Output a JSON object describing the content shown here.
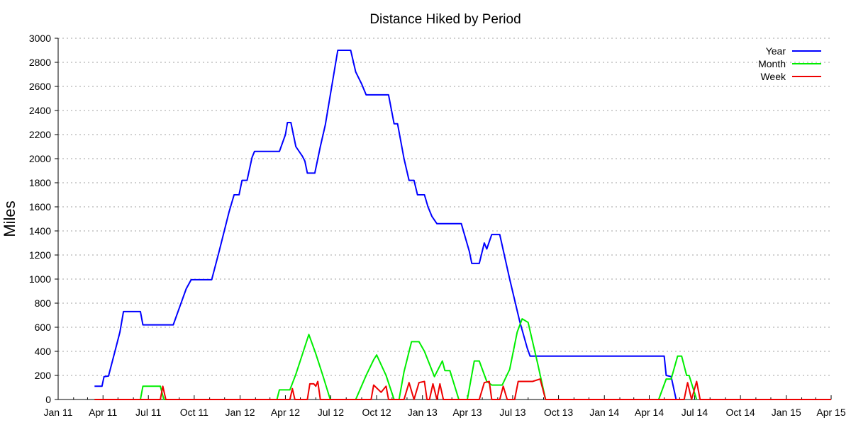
{
  "chart_data": {
    "type": "line",
    "title": "Distance Hiked by Period",
    "xlabel": "",
    "ylabel": "Miles",
    "xlim": [
      "2011-01-01",
      "2015-04-01"
    ],
    "ylim": [
      0,
      3000
    ],
    "grid": true,
    "legend_position": "top-right",
    "x_ticks": [
      "Jan 11",
      "Apr 11",
      "Jul 11",
      "Oct 11",
      "Jan 12",
      "Apr 12",
      "Jul 12",
      "Oct 12",
      "Jan 13",
      "Apr 13",
      "Jul 13",
      "Oct 13",
      "Jan 14",
      "Apr 14",
      "Jul 14",
      "Oct 14",
      "Jan 15",
      "Apr 15"
    ],
    "y_ticks": [
      0,
      200,
      400,
      600,
      800,
      1000,
      1200,
      1400,
      1600,
      1800,
      2000,
      2200,
      2400,
      2600,
      2800,
      3000
    ],
    "series": [
      {
        "name": "Year",
        "color": "#0000ff",
        "points": [
          [
            "2011-03-15",
            110
          ],
          [
            "2011-03-30",
            110
          ],
          [
            "2011-04-03",
            190
          ],
          [
            "2011-04-12",
            195
          ],
          [
            "2011-04-25",
            400
          ],
          [
            "2011-05-05",
            560
          ],
          [
            "2011-05-12",
            730
          ],
          [
            "2011-06-15",
            730
          ],
          [
            "2011-06-20",
            620
          ],
          [
            "2011-08-20",
            620
          ],
          [
            "2011-09-15",
            920
          ],
          [
            "2011-09-25",
            995
          ],
          [
            "2011-11-05",
            995
          ],
          [
            "2011-11-20",
            1230
          ],
          [
            "2011-12-10",
            1560
          ],
          [
            "2011-12-20",
            1700
          ],
          [
            "2011-12-30",
            1700
          ],
          [
            "2012-01-05",
            1820
          ],
          [
            "2012-01-15",
            1820
          ],
          [
            "2012-01-25",
            2010
          ],
          [
            "2012-01-30",
            2060
          ],
          [
            "2012-03-20",
            2060
          ],
          [
            "2012-04-01",
            2200
          ],
          [
            "2012-04-05",
            2300
          ],
          [
            "2012-04-12",
            2300
          ],
          [
            "2012-04-22",
            2100
          ],
          [
            "2012-05-05",
            2020
          ],
          [
            "2012-05-10",
            1980
          ],
          [
            "2012-05-15",
            1880
          ],
          [
            "2012-05-30",
            1880
          ],
          [
            "2012-06-10",
            2100
          ],
          [
            "2012-06-20",
            2280
          ],
          [
            "2012-07-05",
            2650
          ],
          [
            "2012-07-15",
            2900
          ],
          [
            "2012-08-10",
            2900
          ],
          [
            "2012-08-20",
            2720
          ],
          [
            "2012-09-01",
            2620
          ],
          [
            "2012-09-10",
            2530
          ],
          [
            "2012-10-25",
            2530
          ],
          [
            "2012-11-05",
            2290
          ],
          [
            "2012-11-12",
            2290
          ],
          [
            "2012-11-25",
            2000
          ],
          [
            "2012-12-05",
            1820
          ],
          [
            "2012-12-15",
            1820
          ],
          [
            "2012-12-22",
            1700
          ],
          [
            "2013-01-05",
            1700
          ],
          [
            "2013-01-12",
            1600
          ],
          [
            "2013-01-20",
            1520
          ],
          [
            "2013-01-30",
            1460
          ],
          [
            "2013-03-20",
            1460
          ],
          [
            "2013-04-05",
            1230
          ],
          [
            "2013-04-10",
            1130
          ],
          [
            "2013-04-25",
            1130
          ],
          [
            "2013-05-05",
            1300
          ],
          [
            "2013-05-10",
            1250
          ],
          [
            "2013-05-20",
            1370
          ],
          [
            "2013-06-05",
            1370
          ],
          [
            "2013-06-25",
            1000
          ],
          [
            "2013-07-15",
            650
          ],
          [
            "2013-07-30",
            430
          ],
          [
            "2013-08-05",
            360
          ],
          [
            "2014-05-01",
            360
          ],
          [
            "2014-05-05",
            200
          ],
          [
            "2014-05-15",
            190
          ],
          [
            "2014-05-25",
            0
          ]
        ]
      },
      {
        "name": "Month",
        "color": "#00ee00",
        "points": [
          [
            "2011-03-15",
            0
          ],
          [
            "2011-06-15",
            0
          ],
          [
            "2011-06-20",
            110
          ],
          [
            "2011-07-25",
            110
          ],
          [
            "2011-08-01",
            0
          ],
          [
            "2012-03-15",
            0
          ],
          [
            "2012-03-20",
            80
          ],
          [
            "2012-04-10",
            80
          ],
          [
            "2012-04-22",
            210
          ],
          [
            "2012-05-03",
            350
          ],
          [
            "2012-05-18",
            540
          ],
          [
            "2012-06-01",
            380
          ],
          [
            "2012-06-15",
            200
          ],
          [
            "2012-06-30",
            0
          ],
          [
            "2012-08-20",
            0
          ],
          [
            "2012-09-10",
            200
          ],
          [
            "2012-09-25",
            330
          ],
          [
            "2012-10-01",
            370
          ],
          [
            "2012-10-20",
            200
          ],
          [
            "2012-11-05",
            0
          ],
          [
            "2012-11-15",
            0
          ],
          [
            "2012-11-25",
            230
          ],
          [
            "2012-12-10",
            480
          ],
          [
            "2012-12-25",
            480
          ],
          [
            "2013-01-05",
            400
          ],
          [
            "2013-01-25",
            190
          ],
          [
            "2013-02-10",
            320
          ],
          [
            "2013-02-15",
            240
          ],
          [
            "2013-02-25",
            240
          ],
          [
            "2013-03-15",
            0
          ],
          [
            "2013-04-01",
            0
          ],
          [
            "2013-04-15",
            320
          ],
          [
            "2013-04-25",
            320
          ],
          [
            "2013-05-10",
            150
          ],
          [
            "2013-05-20",
            120
          ],
          [
            "2013-06-10",
            120
          ],
          [
            "2013-06-25",
            250
          ],
          [
            "2013-07-10",
            560
          ],
          [
            "2013-07-20",
            670
          ],
          [
            "2013-08-01",
            640
          ],
          [
            "2013-08-20",
            300
          ],
          [
            "2013-09-05",
            0
          ],
          [
            "2014-04-20",
            0
          ],
          [
            "2014-05-05",
            170
          ],
          [
            "2014-05-15",
            170
          ],
          [
            "2014-05-28",
            360
          ],
          [
            "2014-06-05",
            360
          ],
          [
            "2014-06-15",
            200
          ],
          [
            "2014-06-20",
            200
          ],
          [
            "2014-07-05",
            0
          ]
        ]
      },
      {
        "name": "Week",
        "color": "#ee0000",
        "points": [
          [
            "2011-03-15",
            0
          ],
          [
            "2011-07-25",
            0
          ],
          [
            "2011-07-30",
            110
          ],
          [
            "2011-08-05",
            0
          ],
          [
            "2012-04-10",
            0
          ],
          [
            "2012-04-15",
            90
          ],
          [
            "2012-04-20",
            0
          ],
          [
            "2012-05-15",
            0
          ],
          [
            "2012-05-20",
            130
          ],
          [
            "2012-05-28",
            130
          ],
          [
            "2012-06-01",
            110
          ],
          [
            "2012-06-05",
            150
          ],
          [
            "2012-06-10",
            0
          ],
          [
            "2012-09-20",
            0
          ],
          [
            "2012-09-25",
            120
          ],
          [
            "2012-10-10",
            60
          ],
          [
            "2012-10-20",
            110
          ],
          [
            "2012-10-25",
            0
          ],
          [
            "2012-11-25",
            0
          ],
          [
            "2012-12-05",
            140
          ],
          [
            "2012-12-15",
            0
          ],
          [
            "2012-12-25",
            140
          ],
          [
            "2013-01-05",
            150
          ],
          [
            "2013-01-10",
            0
          ],
          [
            "2013-01-15",
            0
          ],
          [
            "2013-01-22",
            130
          ],
          [
            "2013-01-30",
            0
          ],
          [
            "2013-02-05",
            130
          ],
          [
            "2013-02-12",
            0
          ],
          [
            "2013-04-25",
            0
          ],
          [
            "2013-05-05",
            140
          ],
          [
            "2013-05-15",
            150
          ],
          [
            "2013-05-20",
            0
          ],
          [
            "2013-06-05",
            0
          ],
          [
            "2013-06-12",
            110
          ],
          [
            "2013-06-20",
            0
          ],
          [
            "2013-07-05",
            0
          ],
          [
            "2013-07-12",
            150
          ],
          [
            "2013-08-10",
            150
          ],
          [
            "2013-08-25",
            170
          ],
          [
            "2013-09-05",
            0
          ],
          [
            "2014-06-10",
            0
          ],
          [
            "2014-06-17",
            140
          ],
          [
            "2014-06-25",
            0
          ],
          [
            "2014-07-05",
            150
          ],
          [
            "2014-07-12",
            0
          ],
          [
            "2015-04-01",
            0
          ]
        ]
      }
    ]
  }
}
